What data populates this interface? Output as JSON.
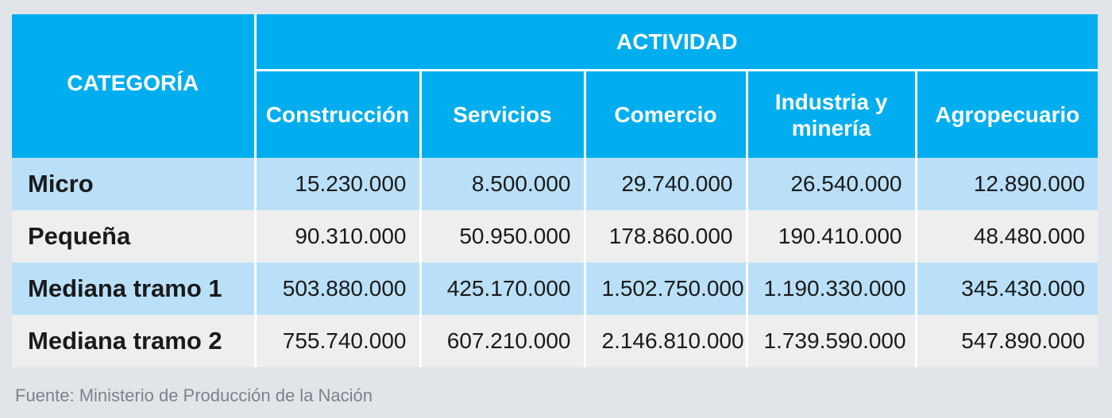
{
  "table": {
    "category_header": "CATEGORÍA",
    "activity_header": "ACTIVIDAD",
    "columns": [
      "Construcción",
      "Servicios",
      "Comercio",
      "Industria y minería",
      "Agropecuario"
    ],
    "rows": [
      {
        "category": "Micro",
        "values": [
          "15.230.000",
          "8.500.000",
          "29.740.000",
          "26.540.000",
          "12.890.000"
        ]
      },
      {
        "category": "Pequeña",
        "values": [
          "90.310.000",
          "50.950.000",
          "178.860.000",
          "190.410.000",
          "48.480.000"
        ]
      },
      {
        "category": "Mediana tramo 1",
        "values": [
          "503.880.000",
          "425.170.000",
          "1.502.750.000",
          "1.190.330.000",
          "345.430.000"
        ]
      },
      {
        "category": "Mediana tramo 2",
        "values": [
          "755.740.000",
          "607.210.000",
          "2.146.810.000",
          "1.739.590.000",
          "547.890.000"
        ]
      }
    ]
  },
  "footer": {
    "source": "Fuente: Ministerio de Producción de la Nación"
  },
  "colors": {
    "header_bg": "#00aeef",
    "row_odd_bg": "#b9e0f8",
    "row_even_bg": "#eeeeee",
    "page_bg": "#e1e5e9"
  }
}
